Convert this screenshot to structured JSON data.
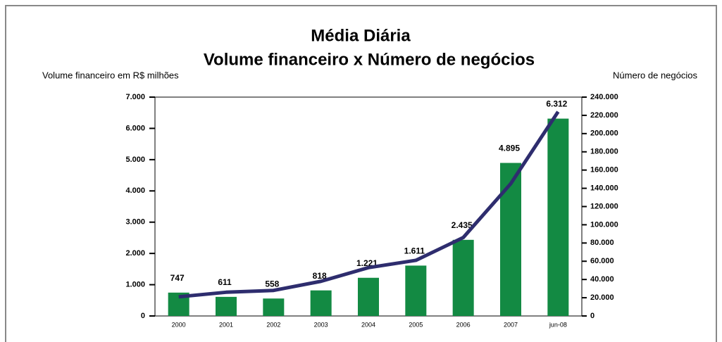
{
  "chart_data": {
    "type": "bar",
    "title": [
      "Média Diária",
      "Volume financeiro  x Número de negócios"
    ],
    "ylabel": "Volume financeiro em R$ milhões",
    "y2label": "Número de negócios",
    "categories": [
      "2000",
      "2001",
      "2002",
      "2003",
      "2004",
      "2005",
      "2006",
      "2007",
      "jun-08"
    ],
    "series": [
      {
        "name": "Volume financeiro",
        "type": "bar",
        "color": "#138a43",
        "values": [
          747,
          611,
          558,
          818,
          1221,
          1611,
          2435,
          4895,
          6312
        ],
        "value_labels": [
          "747",
          "611",
          "558",
          "818",
          "1.221",
          "1.611",
          "2.435",
          "4.895",
          "6.312"
        ]
      },
      {
        "name": "Número de negócios",
        "type": "line",
        "axis": "y2",
        "color": "#2e2d6e",
        "values": [
          21000,
          26000,
          28000,
          38000,
          53000,
          61000,
          86000,
          145000,
          224000
        ]
      }
    ],
    "ylim": [
      0,
      7000
    ],
    "yticks": [
      0,
      {
        "value": 1000,
        "label": "1.000"
      },
      {
        "value": 2000,
        "label": "2.000"
      },
      {
        "value": 3000,
        "label": "3.000"
      },
      {
        "value": 4000,
        "label": "4.000"
      },
      {
        "value": 5000,
        "label": "5.000"
      },
      {
        "value": 6000,
        "label": "6.000"
      },
      {
        "value": 7000,
        "label": "7.000"
      }
    ],
    "y2lim": [
      0,
      240000
    ],
    "y2ticks": [
      0,
      {
        "value": 20000,
        "label": "20.000"
      },
      {
        "value": 40000,
        "label": "40.000"
      },
      {
        "value": 60000,
        "label": "60.000"
      },
      {
        "value": 80000,
        "label": "80.000"
      },
      {
        "value": 100000,
        "label": "100.000"
      },
      {
        "value": 120000,
        "label": "120.000"
      },
      {
        "value": 140000,
        "label": "140.000"
      },
      {
        "value": 160000,
        "label": "160.000"
      },
      {
        "value": 180000,
        "label": "180.000"
      },
      {
        "value": 200000,
        "label": "200.000"
      },
      {
        "value": 220000,
        "label": "220.000"
      },
      {
        "value": 240000,
        "label": "240.000"
      }
    ],
    "grid": false
  }
}
